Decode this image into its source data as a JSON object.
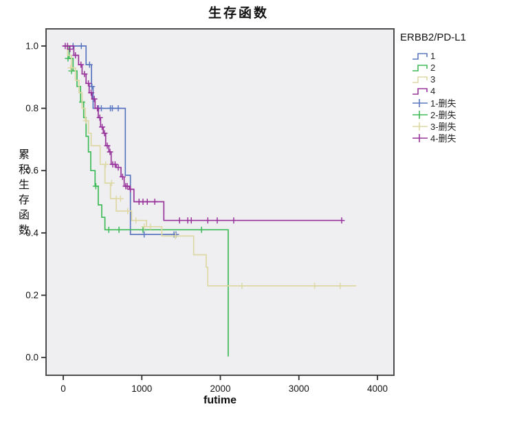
{
  "chart_data": {
    "type": "line",
    "subtype": "kaplan-meier-step",
    "title": "生存函数",
    "xlabel": "futime",
    "ylabel": "累积生存函数",
    "legend_title": "ERBB2/PD-L1",
    "censored_suffix": "-删失",
    "xticks": [
      0,
      1000,
      2000,
      3000,
      4000
    ],
    "yticks": [
      0.0,
      0.2,
      0.4,
      0.6,
      0.8,
      1.0
    ],
    "xlim": [
      -219,
      4210
    ],
    "ylim": [
      -0.057,
      1.055
    ],
    "grid": false,
    "legend_position": "right",
    "plot_bg": "#efeff2",
    "border_color": "#4c4c4c",
    "tick_color": "#2e2e2e",
    "series": [
      {
        "name": "1",
        "color": "#5b76c0",
        "steps": [
          [
            0,
            1.0
          ],
          [
            290,
            0.94
          ],
          [
            360,
            0.87
          ],
          [
            380,
            0.8
          ],
          [
            790,
            0.585
          ],
          [
            855,
            0.395
          ]
        ],
        "end": 1450,
        "censors": [
          [
            125,
            1.0
          ],
          [
            230,
            1.0
          ],
          [
            335,
            0.94
          ],
          [
            365,
            0.87
          ],
          [
            450,
            0.8
          ],
          [
            485,
            0.8
          ],
          [
            600,
            0.8
          ],
          [
            625,
            0.8
          ],
          [
            700,
            0.8
          ],
          [
            1030,
            0.395
          ],
          [
            1410,
            0.395
          ],
          [
            1435,
            0.395
          ]
        ]
      },
      {
        "name": "2",
        "color": "#3eba57",
        "steps": [
          [
            0,
            1.0
          ],
          [
            75,
            0.96
          ],
          [
            125,
            0.92
          ],
          [
            175,
            0.87
          ],
          [
            220,
            0.82
          ],
          [
            260,
            0.77
          ],
          [
            290,
            0.71
          ],
          [
            320,
            0.66
          ],
          [
            350,
            0.6
          ],
          [
            405,
            0.55
          ],
          [
            445,
            0.49
          ],
          [
            490,
            0.45
          ],
          [
            530,
            0.41
          ],
          [
            2100,
            0.005
          ]
        ],
        "end": 2105,
        "censors": [
          [
            60,
            0.96
          ],
          [
            105,
            0.92
          ],
          [
            240,
            0.82
          ],
          [
            415,
            0.55
          ],
          [
            580,
            0.41
          ],
          [
            710,
            0.41
          ],
          [
            1015,
            0.41
          ],
          [
            1760,
            0.41
          ]
        ]
      },
      {
        "name": "3",
        "color": "#ddd8a4",
        "steps": [
          [
            0,
            1.0
          ],
          [
            55,
            0.97
          ],
          [
            105,
            0.93
          ],
          [
            155,
            0.89
          ],
          [
            200,
            0.85
          ],
          [
            240,
            0.8
          ],
          [
            280,
            0.76
          ],
          [
            320,
            0.72
          ],
          [
            355,
            0.68
          ],
          [
            470,
            0.62
          ],
          [
            530,
            0.56
          ],
          [
            600,
            0.51
          ],
          [
            675,
            0.47
          ],
          [
            870,
            0.44
          ],
          [
            1060,
            0.42
          ],
          [
            1255,
            0.39
          ],
          [
            1660,
            0.33
          ],
          [
            1820,
            0.29
          ],
          [
            1840,
            0.23
          ]
        ],
        "end": 3730,
        "censors": [
          [
            95,
            0.93
          ],
          [
            290,
            0.76
          ],
          [
            540,
            0.62
          ],
          [
            615,
            0.56
          ],
          [
            675,
            0.51
          ],
          [
            730,
            0.51
          ],
          [
            820,
            0.47
          ],
          [
            925,
            0.44
          ],
          [
            1030,
            0.42
          ],
          [
            1110,
            0.42
          ],
          [
            1430,
            0.39
          ],
          [
            2275,
            0.23
          ],
          [
            3200,
            0.23
          ],
          [
            3525,
            0.23
          ]
        ]
      },
      {
        "name": "4",
        "color": "#97339a",
        "steps": [
          [
            0,
            1.0
          ],
          [
            135,
            0.97
          ],
          [
            195,
            0.94
          ],
          [
            240,
            0.91
          ],
          [
            290,
            0.88
          ],
          [
            330,
            0.85
          ],
          [
            365,
            0.83
          ],
          [
            405,
            0.8
          ],
          [
            445,
            0.77
          ],
          [
            475,
            0.74
          ],
          [
            510,
            0.72
          ],
          [
            540,
            0.68
          ],
          [
            580,
            0.66
          ],
          [
            610,
            0.62
          ],
          [
            675,
            0.61
          ],
          [
            735,
            0.58
          ],
          [
            775,
            0.55
          ],
          [
            840,
            0.54
          ],
          [
            900,
            0.5
          ],
          [
            1280,
            0.44
          ]
        ],
        "end": 3550,
        "censors": [
          [
            25,
            1.0
          ],
          [
            55,
            1.0
          ],
          [
            85,
            0.99
          ],
          [
            155,
            0.97
          ],
          [
            225,
            0.94
          ],
          [
            270,
            0.91
          ],
          [
            320,
            0.88
          ],
          [
            355,
            0.85
          ],
          [
            395,
            0.83
          ],
          [
            435,
            0.8
          ],
          [
            465,
            0.77
          ],
          [
            495,
            0.74
          ],
          [
            525,
            0.72
          ],
          [
            560,
            0.68
          ],
          [
            595,
            0.66
          ],
          [
            630,
            0.62
          ],
          [
            660,
            0.62
          ],
          [
            700,
            0.61
          ],
          [
            755,
            0.58
          ],
          [
            795,
            0.55
          ],
          [
            815,
            0.55
          ],
          [
            855,
            0.54
          ],
          [
            965,
            0.5
          ],
          [
            1015,
            0.5
          ],
          [
            1070,
            0.5
          ],
          [
            1165,
            0.5
          ],
          [
            1480,
            0.44
          ],
          [
            1585,
            0.44
          ],
          [
            1630,
            0.44
          ],
          [
            1840,
            0.44
          ],
          [
            1960,
            0.44
          ],
          [
            2170,
            0.44
          ],
          [
            3545,
            0.44
          ]
        ]
      }
    ]
  }
}
